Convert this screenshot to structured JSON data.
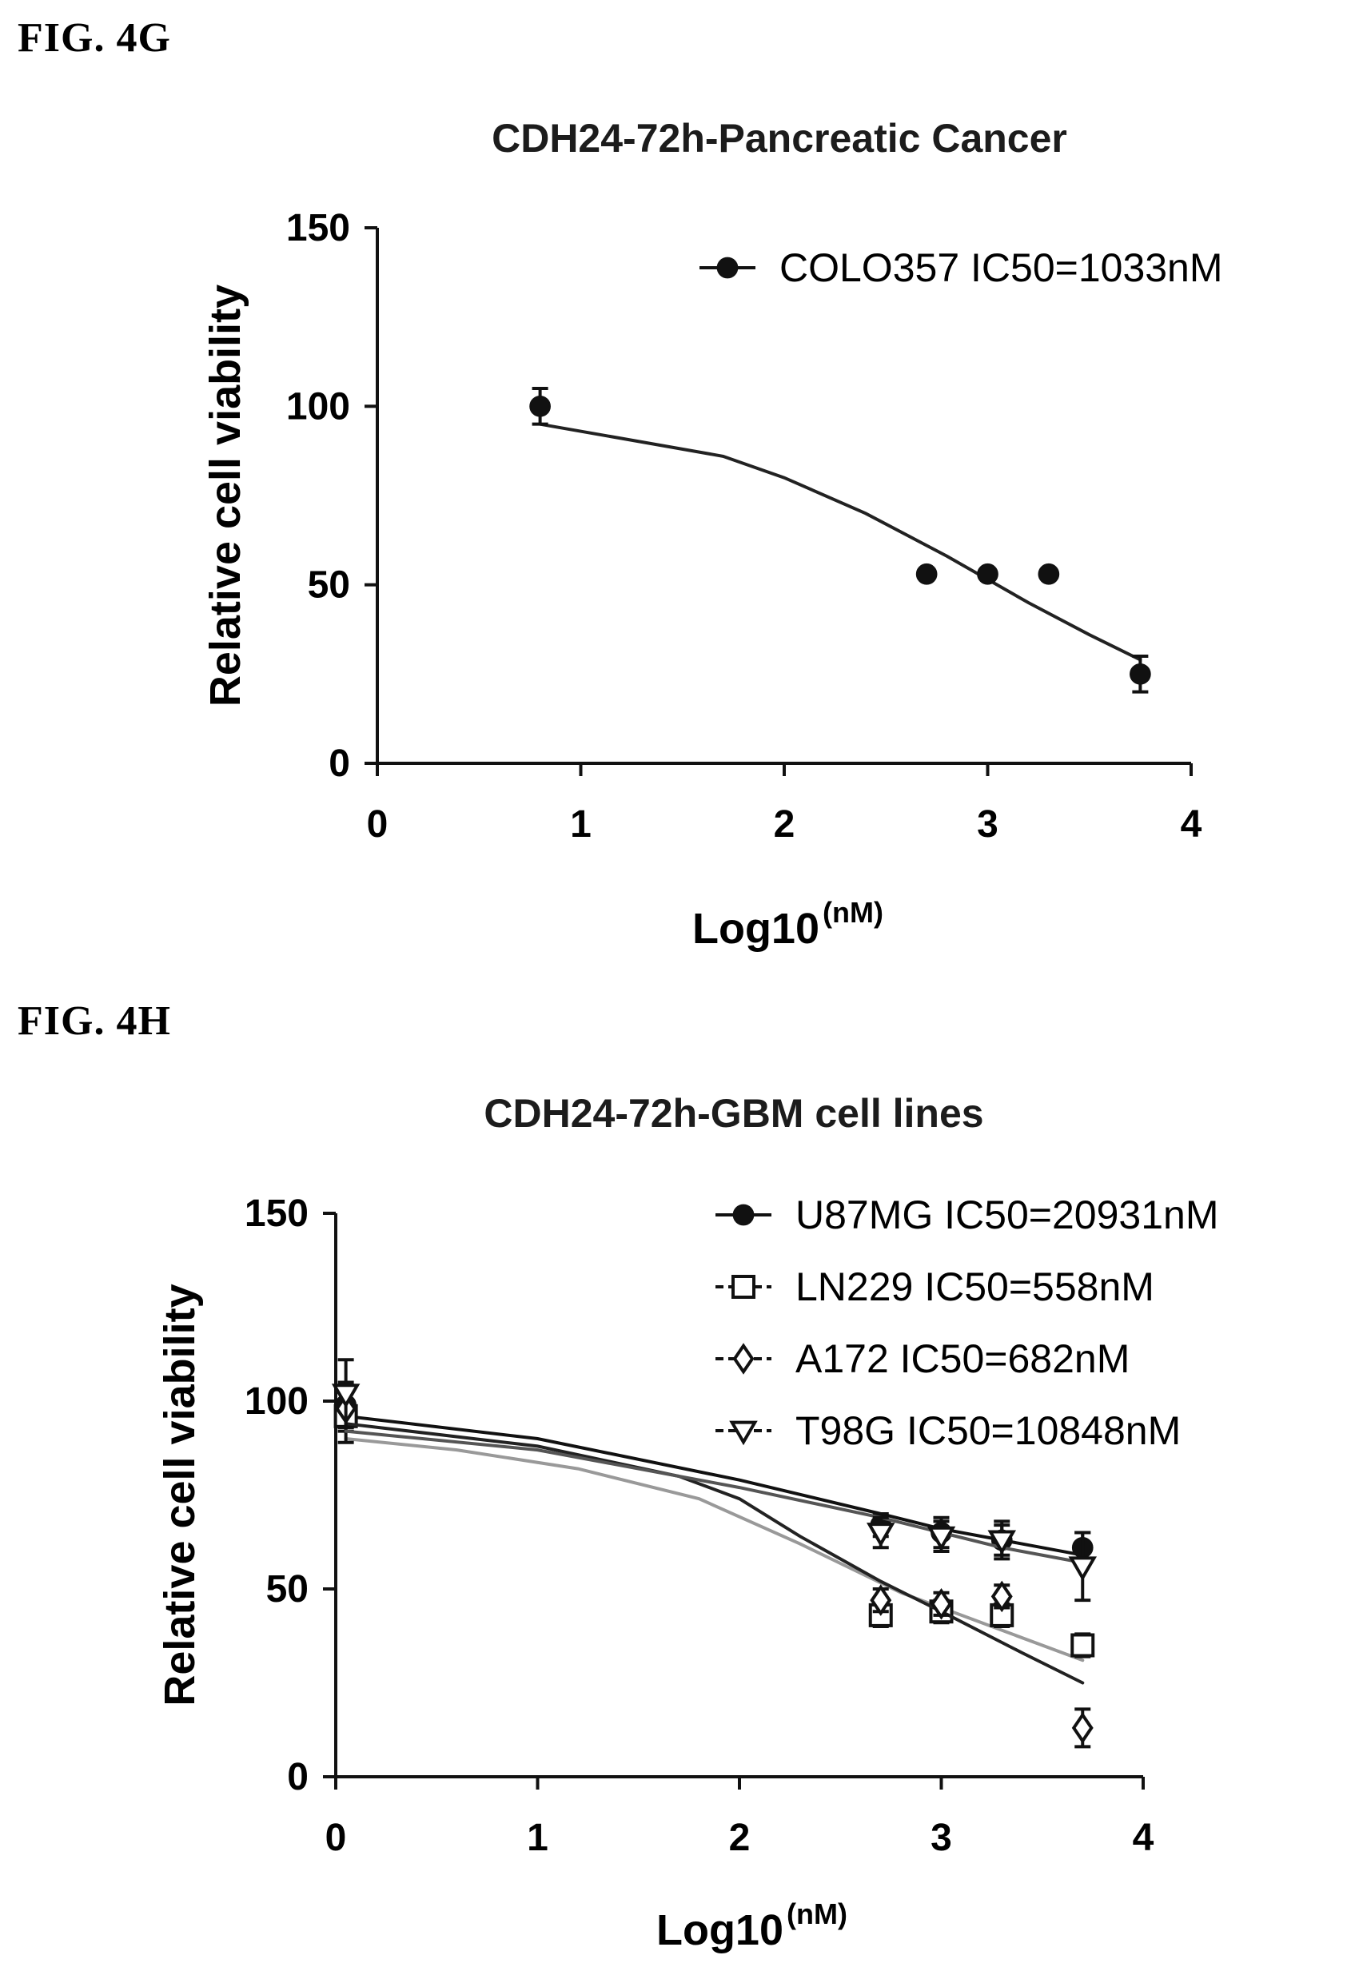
{
  "figures": [
    {
      "label": "FIG. 4G"
    },
    {
      "label": "FIG. 4H"
    }
  ],
  "chart_data": [
    {
      "type": "scatter",
      "title": "CDH24-72h-Pancreatic Cancer",
      "ylabel": "Relative cell viability",
      "xlabel": "Log10",
      "xlabel_unit": "(nM)",
      "xlim": [
        0,
        4
      ],
      "ylim": [
        0,
        150
      ],
      "xticks": [
        0,
        1,
        2,
        3,
        4
      ],
      "yticks": [
        0,
        50,
        100,
        150
      ],
      "legend_position": "top-right",
      "series": [
        {
          "name": "COLO357 IC50=1033nM",
          "marker": "filled-circle",
          "x": [
            0.8,
            2.7,
            3.0,
            3.3,
            3.75
          ],
          "y": [
            100,
            53,
            53,
            53,
            25
          ],
          "err": [
            5,
            0,
            0,
            0,
            5
          ],
          "fit_x": [
            0.8,
            1.2,
            1.7,
            2.0,
            2.4,
            2.8,
            3.2,
            3.5,
            3.75
          ],
          "fit_y": [
            95,
            91,
            86,
            80,
            70,
            58,
            45,
            36,
            29
          ]
        }
      ]
    },
    {
      "type": "scatter",
      "title": "CDH24-72h-GBM cell lines",
      "ylabel": "Relative cell viability",
      "xlabel": "Log10",
      "xlabel_unit": "(nM)",
      "xlim": [
        0,
        4
      ],
      "ylim": [
        0,
        150
      ],
      "xticks": [
        0,
        1,
        2,
        3,
        4
      ],
      "yticks": [
        0,
        50,
        100,
        150
      ],
      "legend_position": "top-right",
      "series": [
        {
          "name": "U87MG IC50=20931nM",
          "marker": "filled-circle",
          "x": [
            0.05,
            2.7,
            3.0,
            3.3,
            3.7
          ],
          "y": [
            99,
            67,
            65,
            63,
            61
          ],
          "err": [
            6,
            3,
            4,
            4,
            4
          ],
          "fit_x": [
            0.05,
            1.0,
            2.0,
            2.7,
            3.0,
            3.3,
            3.7
          ],
          "fit_y": [
            96,
            90,
            79,
            70,
            66,
            63,
            59
          ]
        },
        {
          "name": "LN229 IC50=558nM",
          "marker": "open-square",
          "x": [
            0.05,
            2.7,
            3.0,
            3.3,
            3.7
          ],
          "y": [
            96,
            43,
            44,
            43,
            35
          ],
          "err": [
            7,
            3,
            3,
            3,
            3
          ],
          "fit_x": [
            0.05,
            0.6,
            1.2,
            1.8,
            2.3,
            2.8,
            3.2,
            3.7
          ],
          "fit_y": [
            90,
            87,
            82,
            74,
            62,
            49,
            41,
            31
          ]
        },
        {
          "name": "A172 IC50=682nM",
          "marker": "open-diamond",
          "x": [
            0.05,
            2.7,
            3.0,
            3.3,
            3.7
          ],
          "y": [
            98,
            47,
            46,
            48,
            13
          ],
          "err": [
            6,
            3,
            3,
            3,
            5
          ],
          "fit_x": [
            0.05,
            1.0,
            1.7,
            2.0,
            2.3,
            2.7,
            3.0,
            3.4,
            3.7
          ],
          "fit_y": [
            94,
            88,
            80,
            74,
            64,
            52,
            44,
            33,
            25
          ]
        },
        {
          "name": "T98G IC50=10848nM",
          "marker": "open-triangle-down",
          "x": [
            0.05,
            2.7,
            3.0,
            3.3,
            3.7
          ],
          "y": [
            102,
            65,
            64,
            63,
            56
          ],
          "err": [
            9,
            4,
            4,
            5,
            9
          ],
          "fit_x": [
            0.05,
            1.0,
            2.0,
            2.7,
            3.0,
            3.3,
            3.7
          ],
          "fit_y": [
            92,
            87,
            77,
            69,
            65,
            61,
            57
          ]
        }
      ]
    }
  ]
}
